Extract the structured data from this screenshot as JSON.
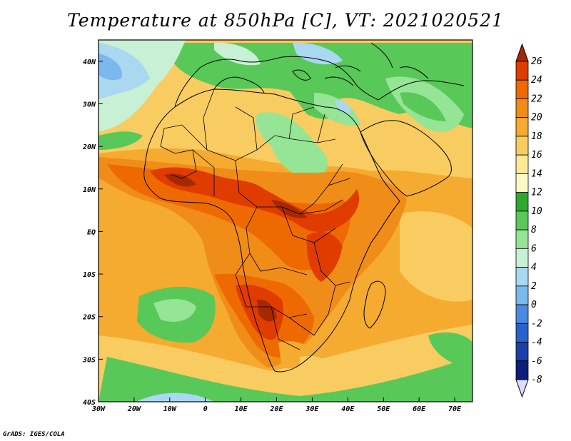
{
  "title": "Temperature at 850hPa [C], VT: 2021020521",
  "credit": "GrADS: IGES/COLA",
  "map": {
    "projection": "lat-lon",
    "lon_range": [
      -30,
      75
    ],
    "lat_range": [
      -40,
      45
    ],
    "lon_ticks": [
      {
        "value": -30,
        "label": "30W"
      },
      {
        "value": -20,
        "label": "20W"
      },
      {
        "value": -10,
        "label": "10W"
      },
      {
        "value": 0,
        "label": "0"
      },
      {
        "value": 10,
        "label": "10E"
      },
      {
        "value": 20,
        "label": "20E"
      },
      {
        "value": 30,
        "label": "30E"
      },
      {
        "value": 40,
        "label": "40E"
      },
      {
        "value": 50,
        "label": "50E"
      },
      {
        "value": 60,
        "label": "60E"
      },
      {
        "value": 70,
        "label": "70E"
      }
    ],
    "lat_ticks": [
      {
        "value": 40,
        "label": "40N"
      },
      {
        "value": 30,
        "label": "30N"
      },
      {
        "value": 20,
        "label": "20N"
      },
      {
        "value": 10,
        "label": "10N"
      },
      {
        "value": 0,
        "label": "EQ"
      },
      {
        "value": -10,
        "label": "10S"
      },
      {
        "value": -20,
        "label": "20S"
      },
      {
        "value": -30,
        "label": "30S"
      },
      {
        "value": -40,
        "label": "40S"
      }
    ],
    "field_regions": [
      {
        "name": "south-ocean-band",
        "value": 16
      },
      {
        "name": "south-atlantic-cool",
        "value": 11
      },
      {
        "name": "southern-tip-cool",
        "value": 10
      },
      {
        "name": "sahara-cool",
        "value": 11
      },
      {
        "name": "egypt-libya-cool",
        "value": 10
      },
      {
        "name": "arabia-cool",
        "value": 11
      },
      {
        "name": "iran-cool",
        "value": 9
      },
      {
        "name": "north-atlantic-cold",
        "value": 6
      },
      {
        "name": "europe-cool",
        "value": 11
      },
      {
        "name": "central-africa-warm",
        "value": 21
      },
      {
        "name": "sahel-hot",
        "value": 24
      },
      {
        "name": "east-africa-hot",
        "value": 24
      },
      {
        "name": "southern-africa-hot",
        "value": 24
      }
    ]
  },
  "colorbar": {
    "levels": [
      26,
      24,
      22,
      20,
      18,
      16,
      14,
      12,
      10,
      8,
      6,
      4,
      2,
      0,
      -2,
      -4,
      -6,
      -8
    ],
    "colors": [
      "#a52800",
      "#e03c00",
      "#ee6a00",
      "#f08c18",
      "#f5aa30",
      "#f8cc60",
      "#faea98",
      "#fdf8c8",
      "#2ea82e",
      "#58c858",
      "#96e496",
      "#c8f0d4",
      "#aad8f0",
      "#7ab8ee",
      "#4a8ae0",
      "#2862cc",
      "#1a40a8",
      "#0c1e7a",
      "#dcdcf8"
    ]
  },
  "colors": {
    "ocean_mid": "#f5aa30",
    "coastline": "#000000"
  }
}
